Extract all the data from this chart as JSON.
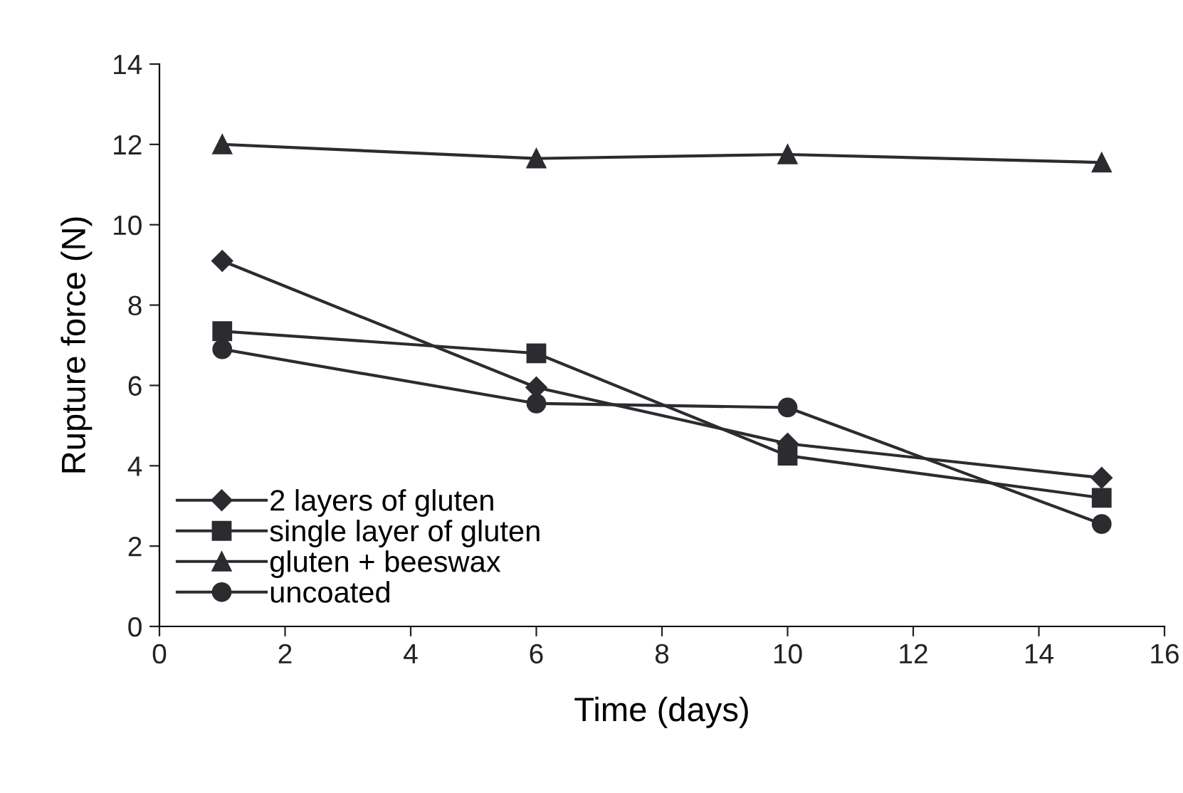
{
  "chart_data": {
    "type": "line",
    "xlabel": "Time (days)",
    "ylabel": "Rupture force (N)",
    "x": [
      1,
      6,
      10,
      15
    ],
    "xlim": [
      0,
      16
    ],
    "xticks": [
      0,
      2,
      4,
      6,
      8,
      10,
      12,
      14,
      16
    ],
    "ylim": [
      0,
      14
    ],
    "yticks": [
      0,
      2,
      4,
      6,
      8,
      10,
      12,
      14
    ],
    "grid": false,
    "legend": "bottom left",
    "line_style": "solid",
    "series": [
      {
        "name": "2 layers of gluten",
        "color": "#2b2b30",
        "marker": "diamond",
        "values": [
          9.1,
          5.95,
          4.55,
          3.7
        ]
      },
      {
        "name": "single layer of gluten",
        "color": "#2b2b30",
        "marker": "square",
        "values": [
          7.35,
          6.8,
          4.25,
          3.2
        ]
      },
      {
        "name": "gluten + beeswax",
        "color": "#2b2b30",
        "marker": "triangle",
        "values": [
          12.0,
          11.65,
          11.75,
          11.55
        ]
      },
      {
        "name": "uncoated",
        "color": "#2b2b30",
        "marker": "circle",
        "values": [
          6.9,
          5.55,
          5.45,
          2.55
        ]
      }
    ]
  }
}
